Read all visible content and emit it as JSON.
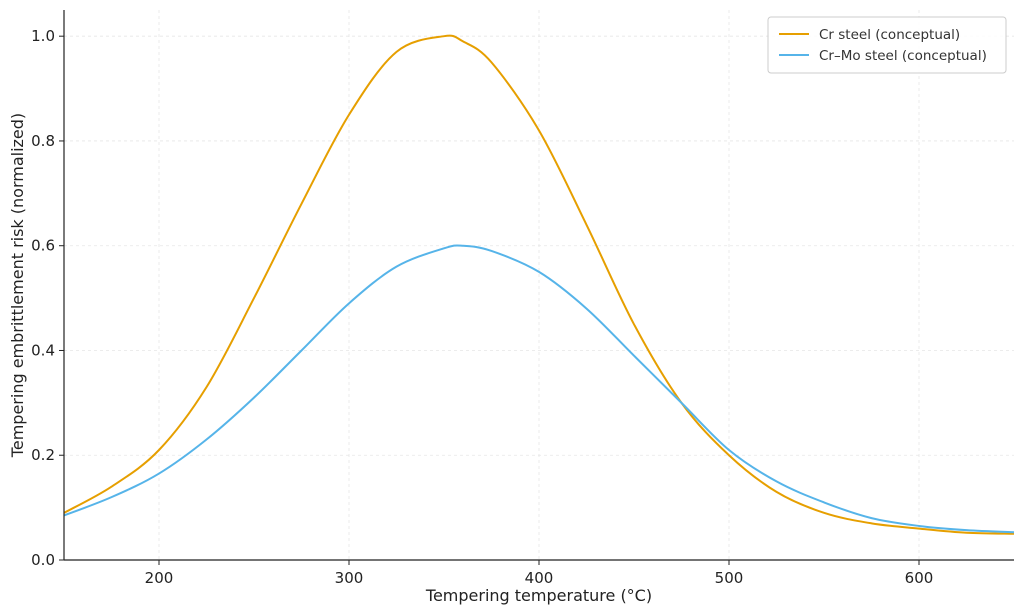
{
  "chart_data": {
    "type": "line",
    "title": "",
    "xlabel": "Tempering temperature (°C)",
    "ylabel": "Tempering embrittlement risk (normalized)",
    "xlim": [
      150,
      650
    ],
    "ylim": [
      0,
      1.05
    ],
    "xticks": [
      200,
      300,
      400,
      500,
      600
    ],
    "yticks": [
      0.0,
      0.2,
      0.4,
      0.6,
      0.8,
      1.0
    ],
    "xtick_labels": [
      "200",
      "300",
      "400",
      "500",
      "600"
    ],
    "ytick_labels": [
      "0.0",
      "0.2",
      "0.4",
      "0.6",
      "0.8",
      "1.0"
    ],
    "grid": true,
    "legend_position": "top-right",
    "x": [
      150,
      175,
      200,
      225,
      250,
      275,
      300,
      325,
      350,
      360,
      375,
      400,
      425,
      450,
      475,
      500,
      525,
      550,
      575,
      600,
      625,
      650
    ],
    "series": [
      {
        "name": "Cr steel (conceptual)",
        "color": "#E69F00",
        "values": [
          0.09,
          0.14,
          0.21,
          0.33,
          0.5,
          0.68,
          0.85,
          0.97,
          1.0,
          0.99,
          0.95,
          0.82,
          0.64,
          0.45,
          0.3,
          0.2,
          0.13,
          0.09,
          0.07,
          0.06,
          0.052,
          0.05
        ]
      },
      {
        "name": "Cr–Mo steel (conceptual)",
        "color": "#56B4E9",
        "values": [
          0.085,
          0.12,
          0.165,
          0.23,
          0.31,
          0.4,
          0.49,
          0.56,
          0.595,
          0.6,
          0.59,
          0.55,
          0.48,
          0.39,
          0.3,
          0.21,
          0.15,
          0.11,
          0.08,
          0.065,
          0.057,
          0.053
        ]
      }
    ]
  }
}
